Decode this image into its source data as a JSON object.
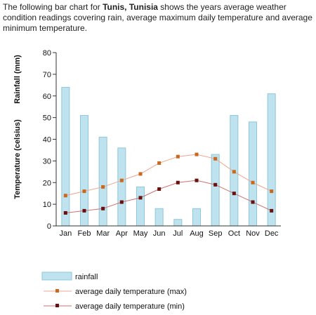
{
  "intro": {
    "before": "The following bar chart for ",
    "city": "Tunis, Tunisia",
    "after": " shows the years average weather condition readings covering rain, average maximum daily temperature and average minimum temperature."
  },
  "chart_data": {
    "type": "bar",
    "categories": [
      "Jan",
      "Feb",
      "Mar",
      "Apr",
      "May",
      "Jun",
      "Jul",
      "Aug",
      "Sep",
      "Oct",
      "Nov",
      "Dec"
    ],
    "series": [
      {
        "name": "rainfall",
        "type": "bar",
        "values": [
          64,
          51,
          41,
          36,
          18,
          8,
          3,
          8,
          33,
          51,
          48,
          61
        ]
      },
      {
        "name": "average daily temperature (max)",
        "type": "line",
        "values": [
          14,
          16,
          18,
          21,
          24,
          29,
          32,
          33,
          31,
          25,
          20,
          16
        ]
      },
      {
        "name": "average daily temperature (min)",
        "type": "line",
        "values": [
          6,
          7,
          8,
          11,
          13,
          17,
          20,
          21,
          19,
          15,
          11,
          7
        ]
      }
    ],
    "ylabel_rain": "Rainfall (mm)",
    "ylabel_temp": "Temperature (celsius)",
    "yticks": [
      0,
      10,
      20,
      30,
      40,
      50,
      60,
      70,
      80
    ],
    "ylim": [
      0,
      80
    ],
    "grid": false,
    "legend_position": "bottom",
    "colors": {
      "bar_fill": "#bfe3ee",
      "bar_stroke": "#8ec8da",
      "max_line": "#f0a48c",
      "max_marker": "#c8691e",
      "min_line": "#d07070",
      "min_marker": "#6a1010"
    }
  }
}
